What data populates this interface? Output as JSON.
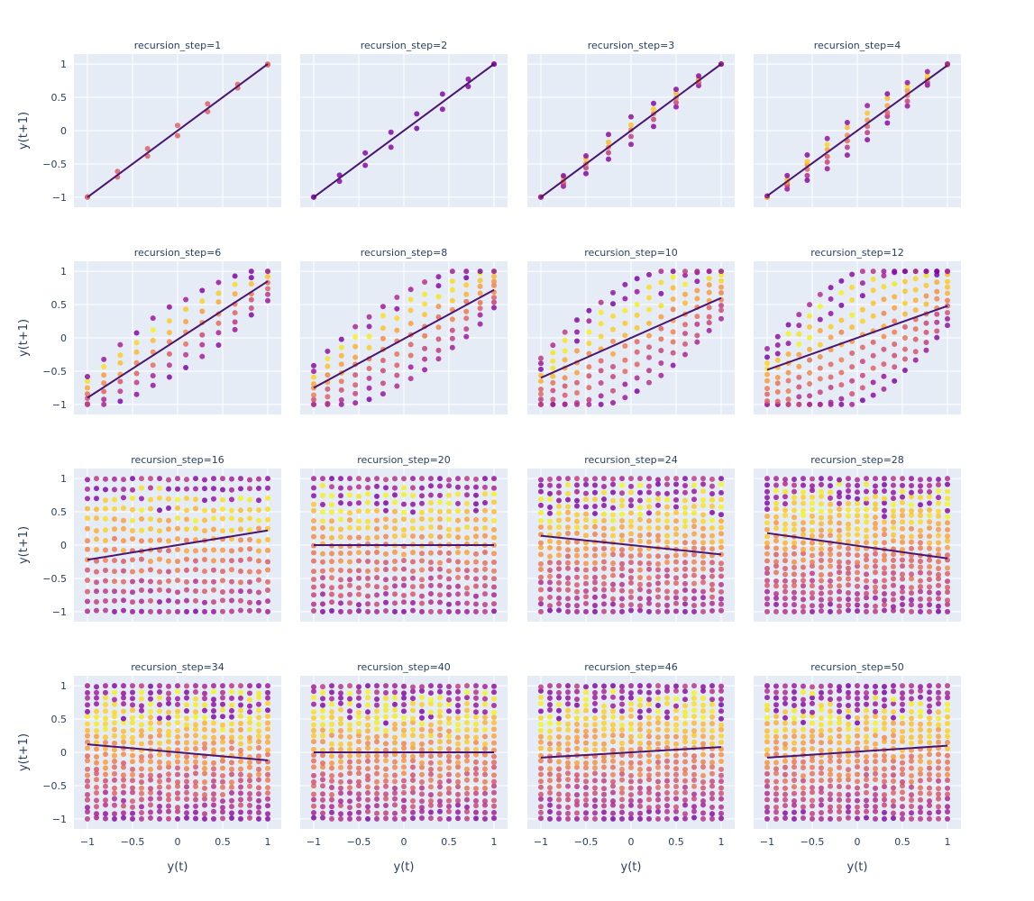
{
  "chart_data": {
    "type": "scatter",
    "layout": "facet-grid",
    "rows": 4,
    "cols": 4,
    "xlabel": "y(t)",
    "ylabel": "y(t+1)",
    "xlim": [
      -1.15,
      1.15
    ],
    "ylim": [
      -1.15,
      1.15
    ],
    "x_ticks": [
      -1,
      -0.5,
      0,
      0.5,
      1
    ],
    "x_tick_labels": [
      "−1",
      "−0.5",
      "0",
      "0.5",
      "1"
    ],
    "y_ticks": [
      -1,
      -0.5,
      0,
      0.5,
      1
    ],
    "y_tick_labels": [
      "−1",
      "−0.5",
      "0",
      "0.5",
      "1"
    ],
    "grid": true,
    "plot_background": "#e5ecf6",
    "trendline_color": "#4a1570",
    "colorscale": [
      "#0d0887",
      "#46039f",
      "#7201a8",
      "#9c179e",
      "#bd3786",
      "#d8576b",
      "#ed7953",
      "#fb9f3a",
      "#fdca26",
      "#f0f921"
    ],
    "panels": [
      {
        "title": "recursion_step=1",
        "step": 1,
        "trend": [
          -1.0,
          1.0
        ]
      },
      {
        "title": "recursion_step=2",
        "step": 2,
        "trend": [
          -1.0,
          1.0
        ]
      },
      {
        "title": "recursion_step=3",
        "step": 3,
        "trend": [
          -1.0,
          1.0
        ]
      },
      {
        "title": "recursion_step=4",
        "step": 4,
        "trend": [
          -0.98,
          0.98
        ]
      },
      {
        "title": "recursion_step=6",
        "step": 6,
        "trend": [
          -0.9,
          0.85
        ]
      },
      {
        "title": "recursion_step=8",
        "step": 8,
        "trend": [
          -0.75,
          0.72
        ]
      },
      {
        "title": "recursion_step=10",
        "step": 10,
        "trend": [
          -0.6,
          0.6
        ]
      },
      {
        "title": "recursion_step=12",
        "step": 12,
        "trend": [
          -0.48,
          0.48
        ]
      },
      {
        "title": "recursion_step=16",
        "step": 16,
        "trend": [
          -0.22,
          0.22
        ]
      },
      {
        "title": "recursion_step=20",
        "step": 20,
        "trend": [
          0.0,
          0.0
        ]
      },
      {
        "title": "recursion_step=24",
        "step": 24,
        "trend": [
          0.14,
          -0.14
        ]
      },
      {
        "title": "recursion_step=28",
        "step": 28,
        "trend": [
          0.18,
          -0.2
        ]
      },
      {
        "title": "recursion_step=34",
        "step": 34,
        "trend": [
          0.12,
          -0.12
        ]
      },
      {
        "title": "recursion_step=40",
        "step": 40,
        "trend": [
          0.0,
          0.0
        ]
      },
      {
        "title": "recursion_step=46",
        "step": 46,
        "trend": [
          -0.08,
          0.08
        ]
      },
      {
        "title": "recursion_step=50",
        "step": 50,
        "trend": [
          -0.08,
          0.1
        ]
      }
    ]
  }
}
